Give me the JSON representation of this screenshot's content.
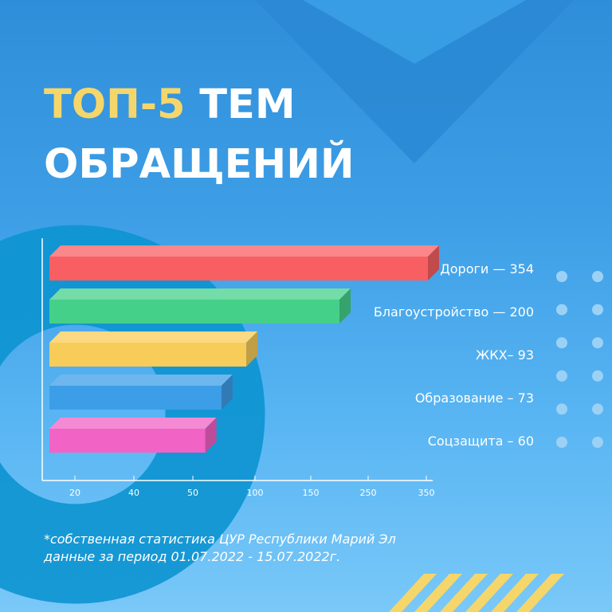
{
  "title": {
    "accent": "ТОП-5",
    "rest": " ТЕМ",
    "line2": "ОБРАЩЕНИЙ"
  },
  "chart_data": {
    "type": "bar",
    "orientation": "horizontal",
    "categories": [
      "Дороги",
      "Благоустройство",
      "ЖКХ",
      "Образование",
      "Соцзащита"
    ],
    "values": [
      354,
      200,
      93,
      73,
      60
    ],
    "bar_labels": [
      "Дороги — 354",
      "Благоустройство — 200",
      "ЖКХ– 93",
      "Образование – 73",
      "Соцзащита – 60"
    ],
    "colors": [
      "#f85f62",
      "#45d08a",
      "#f8cc58",
      "#3d9ee8",
      "#f263c6"
    ],
    "x_tick_labels": [
      "20",
      "40",
      "50",
      "100",
      "150",
      "250",
      "350"
    ],
    "x_axis_note": "tick labels are non-linear as printed; bar lengths follow the printed tick positions",
    "grid": false,
    "legend": "none (labels right of bars)"
  },
  "footnote": {
    "line1": "*собственная статистика ЦУР Республики Марий Эл",
    "line2": "данные за период 01.07.2022 - 15.07.2022г."
  }
}
